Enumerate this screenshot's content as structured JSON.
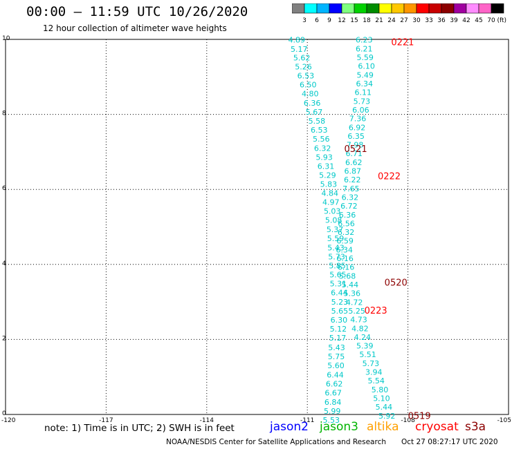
{
  "header": {
    "title": "00:00 – 11:59 UTC 10/26/2020",
    "subtitle": "12 hour collection of altimeter wave heights"
  },
  "colorbar": {
    "colors": [
      "#808080",
      "#00ffff",
      "#00b4ff",
      "#0000ff",
      "#7fff7f",
      "#00d200",
      "#008c00",
      "#ffff00",
      "#ffc800",
      "#ff9600",
      "#ff0000",
      "#c80000",
      "#8c0000",
      "#a000a0",
      "#ff8cff",
      "#ff64c8",
      "#000000"
    ],
    "labels": [
      "3",
      "6",
      "9",
      "12",
      "15",
      "18",
      "21",
      "24",
      "27",
      "30",
      "33",
      "36",
      "39",
      "42",
      "45",
      "70"
    ],
    "unit": "(ft)"
  },
  "chart_data": {
    "type": "scatter",
    "title": "00:00 – 11:59 UTC 10/26/2020",
    "subtitle": "12 hour collection of altimeter wave heights",
    "xlim": [
      -120,
      -105
    ],
    "ylim": [
      0,
      10
    ],
    "x_ticks": [
      "-120",
      "-117",
      "-114",
      "-111",
      "-108",
      "-105"
    ],
    "y_ticks": [
      "0",
      "2",
      "4",
      "6",
      "8",
      "10"
    ],
    "grid": true,
    "point_color": "#00c8c8",
    "series": [
      {
        "values": [
          "4.89",
          "5.17",
          "5.62",
          "5.26",
          "6.53",
          "6.50",
          "4.80",
          "6.36",
          "5.67",
          "5.58",
          "6.53",
          "5.56",
          "6.32",
          "5.93",
          "6.31",
          "5.29",
          "5.83",
          "4.84",
          "4.97",
          "5.03",
          "5.08",
          "5.37",
          "5.59",
          "5.43",
          "5.73",
          "5.85",
          "5.65",
          "5.31",
          "6.44",
          "5.23",
          "5.65",
          "6.30",
          "5.12",
          "5.17",
          "5.43",
          "5.75",
          "5.60",
          "6.44",
          "6.62",
          "6.67",
          "6.84",
          "5.99",
          "5.53"
        ],
        "points": [
          [
            -111.57,
            9.99
          ],
          [
            -111.5,
            9.74
          ],
          [
            -111.42,
            9.51
          ],
          [
            -111.37,
            9.27
          ],
          [
            -111.3,
            9.03
          ],
          [
            -111.23,
            8.79
          ],
          [
            -111.17,
            8.55
          ],
          [
            -111.11,
            8.31
          ],
          [
            -111.05,
            8.07
          ],
          [
            -110.97,
            7.83
          ],
          [
            -110.9,
            7.59
          ],
          [
            -110.84,
            7.35
          ],
          [
            -110.8,
            7.1
          ],
          [
            -110.75,
            6.86
          ],
          [
            -110.7,
            6.62
          ],
          [
            -110.65,
            6.38
          ],
          [
            -110.62,
            6.14
          ],
          [
            -110.58,
            5.9
          ],
          [
            -110.55,
            5.66
          ],
          [
            -110.51,
            5.42
          ],
          [
            -110.47,
            5.18
          ],
          [
            -110.43,
            4.94
          ],
          [
            -110.41,
            4.7
          ],
          [
            -110.4,
            4.45
          ],
          [
            -110.38,
            4.21
          ],
          [
            -110.36,
            3.97
          ],
          [
            -110.34,
            3.73
          ],
          [
            -110.33,
            3.49
          ],
          [
            -110.3,
            3.25
          ],
          [
            -110.29,
            3.0
          ],
          [
            -110.29,
            2.76
          ],
          [
            -110.31,
            2.52
          ],
          [
            -110.33,
            2.28
          ],
          [
            -110.35,
            2.04
          ],
          [
            -110.38,
            1.79
          ],
          [
            -110.39,
            1.55
          ],
          [
            -110.4,
            1.31
          ],
          [
            -110.42,
            1.06
          ],
          [
            -110.45,
            0.82
          ],
          [
            -110.48,
            0.58
          ],
          [
            -110.49,
            0.33
          ],
          [
            -110.51,
            0.09
          ],
          [
            -110.54,
            -0.15
          ]
        ]
      },
      {
        "values": [
          "6.23",
          "6.21",
          "5.59",
          "6.10",
          "5.49",
          "6.34",
          "6.11",
          "5.73",
          "6.06",
          "7.36",
          "6.92",
          "6.35",
          "7.98",
          "6.71",
          "6.62",
          "6.87",
          "6.22",
          "7.65",
          "6.32",
          "6.72",
          "6.36",
          "6.56",
          "6.32",
          "6.59",
          "6.34",
          "6.16",
          "6.16",
          "5.68",
          "5.44",
          "5.36",
          "4.72",
          "5.25",
          "4.73",
          "4.82",
          "4.24",
          "5.39",
          "5.51",
          "5.73",
          "3.94",
          "5.54",
          "5.80",
          "5.10",
          "5.44",
          "5.92"
        ],
        "points": [
          [
            -109.56,
            9.99
          ],
          [
            -109.56,
            9.75
          ],
          [
            -109.53,
            9.52
          ],
          [
            -109.49,
            9.29
          ],
          [
            -109.53,
            9.05
          ],
          [
            -109.55,
            8.82
          ],
          [
            -109.59,
            8.59
          ],
          [
            -109.63,
            8.35
          ],
          [
            -109.66,
            8.12
          ],
          [
            -109.75,
            7.89
          ],
          [
            -109.77,
            7.65
          ],
          [
            -109.8,
            7.42
          ],
          [
            -109.83,
            7.19
          ],
          [
            -109.86,
            6.96
          ],
          [
            -109.87,
            6.72
          ],
          [
            -109.9,
            6.49
          ],
          [
            -109.91,
            6.26
          ],
          [
            -109.95,
            6.02
          ],
          [
            -109.98,
            5.79
          ],
          [
            -110.01,
            5.56
          ],
          [
            -110.06,
            5.32
          ],
          [
            -110.09,
            5.09
          ],
          [
            -110.1,
            4.86
          ],
          [
            -110.13,
            4.63
          ],
          [
            -110.15,
            4.39
          ],
          [
            -110.13,
            4.16
          ],
          [
            -110.1,
            3.93
          ],
          [
            -110.06,
            3.69
          ],
          [
            -109.98,
            3.46
          ],
          [
            -109.92,
            3.23
          ],
          [
            -109.85,
            2.99
          ],
          [
            -109.78,
            2.76
          ],
          [
            -109.72,
            2.53
          ],
          [
            -109.68,
            2.29
          ],
          [
            -109.61,
            2.06
          ],
          [
            -109.54,
            1.83
          ],
          [
            -109.45,
            1.6
          ],
          [
            -109.36,
            1.36
          ],
          [
            -109.27,
            1.13
          ],
          [
            -109.2,
            0.9
          ],
          [
            -109.09,
            0.66
          ],
          [
            -109.04,
            0.43
          ],
          [
            -108.97,
            0.2
          ],
          [
            -108.88,
            -0.04
          ]
        ]
      }
    ],
    "annotations": [
      {
        "text": "0221",
        "x": -108.5,
        "y": 9.92,
        "color": "#ff0000"
      },
      {
        "text": "0521",
        "x": -109.9,
        "y": 7.07,
        "color": "#8c0000"
      },
      {
        "text": "0222",
        "x": -108.9,
        "y": 6.34,
        "color": "#ff0000"
      },
      {
        "text": "0520",
        "x": -108.7,
        "y": 3.51,
        "color": "#8c0000"
      },
      {
        "text": "0223",
        "x": -109.3,
        "y": 2.76,
        "color": "#ff0000"
      },
      {
        "text": "0519",
        "x": -108.0,
        "y": -0.05,
        "color": "#8c0000"
      }
    ]
  },
  "footer": {
    "note": "note: 1) Time is in UTC; 2) SWH is in feet",
    "satellites": [
      {
        "name": "jason2",
        "color": "#0000ff"
      },
      {
        "name": "jason3",
        "color": "#00b400"
      },
      {
        "name": "altika",
        "color": "#ffa000"
      },
      {
        "name": "cryosat",
        "color": "#ff0000"
      },
      {
        "name": "s3a",
        "color": "#8c0000"
      }
    ],
    "credit": "NOAA/NESDIS Center for Satellite Applications and Research",
    "timestamp": "Oct 27 08:27:17 UTC 2020"
  }
}
